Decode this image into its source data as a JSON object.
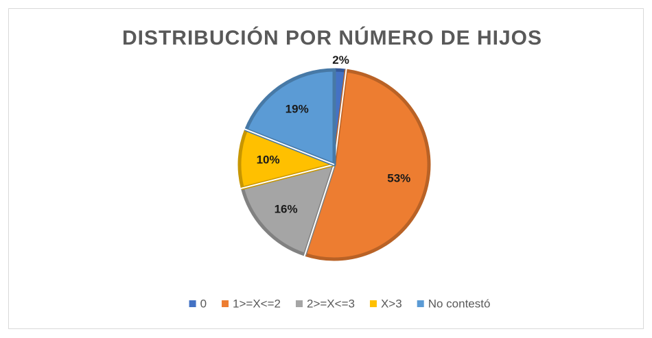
{
  "chart_data": {
    "type": "pie",
    "title": "DISTRIBUCIÓN POR NÚMERO DE HIJOS",
    "categories": [
      "0",
      "1>=X<=2",
      "2>=X<=3",
      "X>3",
      "No contestó"
    ],
    "values": [
      2,
      53,
      16,
      10,
      19
    ],
    "value_labels": [
      "2%",
      "53%",
      "16%",
      "10%",
      "19%"
    ],
    "colors": [
      "#4472c4",
      "#ed7d31",
      "#a5a5a5",
      "#ffc000",
      "#5b9bd5"
    ],
    "legend": "bottom"
  }
}
